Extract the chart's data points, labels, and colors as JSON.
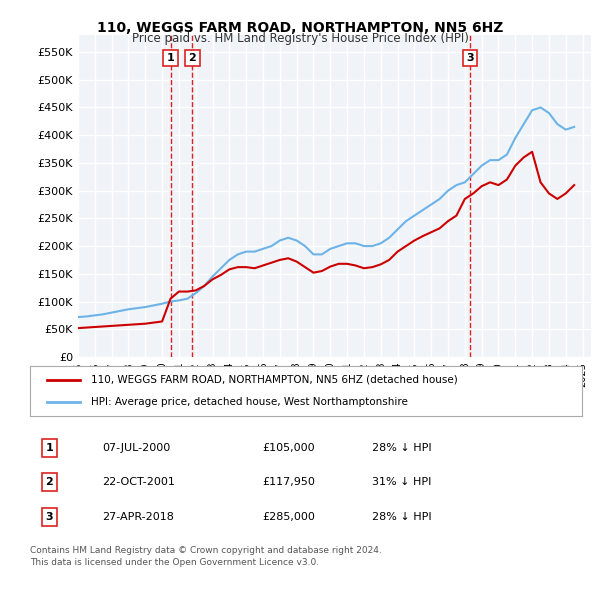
{
  "title": "110, WEGGS FARM ROAD, NORTHAMPTON, NN5 6HZ",
  "subtitle": "Price paid vs. HM Land Registry's House Price Index (HPI)",
  "legend_line1": "110, WEGGS FARM ROAD, NORTHAMPTON, NN5 6HZ (detached house)",
  "legend_line2": "HPI: Average price, detached house, West Northamptonshire",
  "footer1": "Contains HM Land Registry data © Crown copyright and database right 2024.",
  "footer2": "This data is licensed under the Open Government Licence v3.0.",
  "transactions": [
    {
      "num": 1,
      "date": "07-JUL-2000",
      "price": "£105,000",
      "hpi": "28% ↓ HPI",
      "year": 2000.5
    },
    {
      "num": 2,
      "date": "22-OCT-2001",
      "price": "£117,950",
      "hpi": "31% ↓ HPI",
      "year": 2001.8
    },
    {
      "num": 3,
      "date": "27-APR-2018",
      "price": "£285,000",
      "hpi": "28% ↓ HPI",
      "year": 2018.3
    }
  ],
  "hpi_color": "#6db3e8",
  "price_color": "#cc0000",
  "vline_color": "#dd2222",
  "background_chart": "#f0f4f8",
  "grid_color": "#ffffff",
  "ylim": [
    0,
    580000
  ],
  "yticks": [
    0,
    50000,
    100000,
    150000,
    200000,
    250000,
    300000,
    350000,
    400000,
    450000,
    500000,
    550000
  ],
  "ytick_labels": [
    "£0",
    "£50K",
    "£100K",
    "£150K",
    "£200K",
    "£250K",
    "£300K",
    "£350K",
    "£400K",
    "£450K",
    "£500K",
    "£550K"
  ],
  "hpi_data": {
    "years": [
      1995.0,
      1995.5,
      1996.0,
      1996.5,
      1997.0,
      1997.5,
      1998.0,
      1998.5,
      1999.0,
      1999.5,
      2000.0,
      2000.5,
      2001.0,
      2001.5,
      2002.0,
      2002.5,
      2003.0,
      2003.5,
      2004.0,
      2004.5,
      2005.0,
      2005.5,
      2006.0,
      2006.5,
      2007.0,
      2007.5,
      2008.0,
      2008.5,
      2009.0,
      2009.5,
      2010.0,
      2010.5,
      2011.0,
      2011.5,
      2012.0,
      2012.5,
      2013.0,
      2013.5,
      2014.0,
      2014.5,
      2015.0,
      2015.5,
      2016.0,
      2016.5,
      2017.0,
      2017.5,
      2018.0,
      2018.5,
      2019.0,
      2019.5,
      2020.0,
      2020.5,
      2021.0,
      2021.5,
      2022.0,
      2022.5,
      2023.0,
      2023.5,
      2024.0,
      2024.5
    ],
    "values": [
      72000,
      73000,
      75000,
      77000,
      80000,
      83000,
      86000,
      88000,
      90000,
      93000,
      96000,
      100000,
      102000,
      105000,
      115000,
      128000,
      145000,
      160000,
      175000,
      185000,
      190000,
      190000,
      195000,
      200000,
      210000,
      215000,
      210000,
      200000,
      185000,
      185000,
      195000,
      200000,
      205000,
      205000,
      200000,
      200000,
      205000,
      215000,
      230000,
      245000,
      255000,
      265000,
      275000,
      285000,
      300000,
      310000,
      315000,
      330000,
      345000,
      355000,
      355000,
      365000,
      395000,
      420000,
      445000,
      450000,
      440000,
      420000,
      410000,
      415000
    ]
  },
  "price_data": {
    "years": [
      1995.0,
      1995.5,
      1996.0,
      1996.5,
      1997.0,
      1997.5,
      1998.0,
      1998.5,
      1999.0,
      1999.5,
      2000.0,
      2000.5,
      2001.0,
      2001.5,
      2002.0,
      2002.5,
      2003.0,
      2003.5,
      2004.0,
      2004.5,
      2005.0,
      2005.5,
      2006.0,
      2006.5,
      2007.0,
      2007.5,
      2008.0,
      2008.5,
      2009.0,
      2009.5,
      2010.0,
      2010.5,
      2011.0,
      2011.5,
      2012.0,
      2012.5,
      2013.0,
      2013.5,
      2014.0,
      2014.5,
      2015.0,
      2015.5,
      2016.0,
      2016.5,
      2017.0,
      2017.5,
      2018.0,
      2018.5,
      2019.0,
      2019.5,
      2020.0,
      2020.5,
      2021.0,
      2021.5,
      2022.0,
      2022.5,
      2023.0,
      2023.5,
      2024.0,
      2024.5
    ],
    "values": [
      52000,
      53000,
      54000,
      55000,
      56000,
      57000,
      58000,
      59000,
      60000,
      62000,
      64000,
      105000,
      117950,
      117950,
      120000,
      128000,
      140000,
      148000,
      158000,
      162000,
      162000,
      160000,
      165000,
      170000,
      175000,
      178000,
      172000,
      162000,
      152000,
      155000,
      163000,
      168000,
      168000,
      165000,
      160000,
      162000,
      167000,
      175000,
      190000,
      200000,
      210000,
      218000,
      225000,
      232000,
      245000,
      255000,
      285000,
      295000,
      308000,
      315000,
      310000,
      320000,
      345000,
      360000,
      370000,
      315000,
      295000,
      285000,
      295000,
      310000
    ]
  }
}
